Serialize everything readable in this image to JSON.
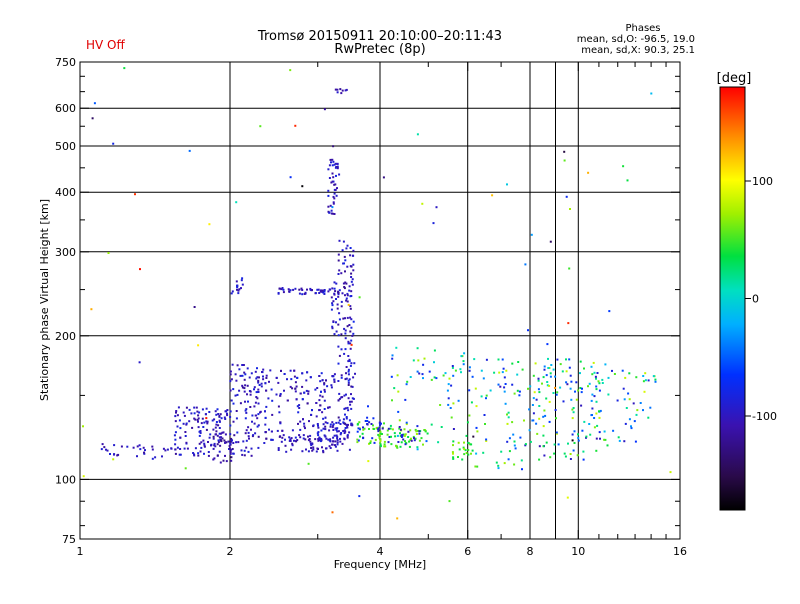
{
  "header": {
    "status": "HV Off",
    "status_color": "#e00000",
    "title_line1": "Tromsø 20150911 20:10:00–20:11:43",
    "title_line2": "RwPretec (8p)"
  },
  "phase_stats": {
    "heading": "Phases",
    "line_o": "mean, sd,O: -96.5, 19.0",
    "line_x": "mean, sd,X: 90.3, 25.1"
  },
  "colorbar": {
    "label": "[deg]",
    "min": -180,
    "max": 180,
    "ticks": [
      {
        "value": 100,
        "label": "100"
      },
      {
        "value": 0,
        "label": "0"
      },
      {
        "value": -100,
        "label": "-100"
      }
    ]
  },
  "chart_data": {
    "type": "scatter",
    "xlabel": "Frequency [MHz]",
    "ylabel": "Stationary phase Virtual Height [km]",
    "x_scale": "log",
    "y_scale": "log",
    "xlim": [
      1,
      16
    ],
    "ylim": [
      75,
      750
    ],
    "x_ticks": [
      {
        "value": 1,
        "label": "1"
      },
      {
        "value": 2,
        "label": "2"
      },
      {
        "value": 4,
        "label": "4"
      },
      {
        "value": 6,
        "label": "6"
      },
      {
        "value": 8,
        "label": "8"
      },
      {
        "value": 10,
        "label": "10"
      },
      {
        "value": 16,
        "label": "16"
      }
    ],
    "y_ticks": [
      {
        "value": 75,
        "label": "75"
      },
      {
        "value": 100,
        "label": "100"
      },
      {
        "value": 200,
        "label": "200"
      },
      {
        "value": 300,
        "label": "300"
      },
      {
        "value": 400,
        "label": "400"
      },
      {
        "value": 500,
        "label": "500"
      },
      {
        "value": 600,
        "label": "600"
      },
      {
        "value": 750,
        "label": "750"
      }
    ],
    "x_minor": [
      3,
      5,
      7,
      9,
      11,
      12,
      13,
      14,
      15
    ],
    "y_minor": [
      80,
      90,
      150,
      250,
      350,
      450,
      550,
      650,
      700
    ],
    "grid_x": [
      2,
      4,
      6,
      8,
      9,
      10
    ],
    "grid_y": [
      100,
      200,
      300,
      400,
      500,
      600
    ],
    "clusters": [
      {
        "f": [
          1.1,
          1.3
        ],
        "h": [
          112,
          120
        ],
        "phase": [
          -120,
          -85
        ],
        "n": 14
      },
      {
        "f": [
          1.3,
          1.55
        ],
        "h": [
          110,
          118
        ],
        "phase": [
          -120,
          -85
        ],
        "n": 18
      },
      {
        "f": [
          1.55,
          2.0
        ],
        "h": [
          112,
          142
        ],
        "phase": [
          -120,
          -80
        ],
        "n": 130
      },
      {
        "f": [
          1.85,
          2.05
        ],
        "h": [
          108,
          125
        ],
        "phase": [
          -130,
          -100
        ],
        "n": 40
      },
      {
        "f": [
          2.0,
          2.35
        ],
        "h": [
          112,
          175
        ],
        "phase": [
          -120,
          -80
        ],
        "n": 120
      },
      {
        "f": [
          2.35,
          3.3
        ],
        "h": [
          120,
          170
        ],
        "phase": [
          -120,
          -80
        ],
        "n": 170
      },
      {
        "f": [
          2.5,
          3.5
        ],
        "h": [
          114,
          124
        ],
        "phase": [
          -120,
          -90
        ],
        "n": 70
      },
      {
        "f": [
          3.0,
          3.55
        ],
        "h": [
          120,
          132
        ],
        "phase": [
          -110,
          -80
        ],
        "n": 60
      },
      {
        "f": [
          2.0,
          2.15
        ],
        "h": [
          245,
          265
        ],
        "phase": [
          -120,
          -80
        ],
        "n": 16
      },
      {
        "f": [
          2.5,
          3.25
        ],
        "h": [
          244,
          252
        ],
        "phase": [
          -120,
          -80
        ],
        "n": 45
      },
      {
        "f": [
          3.2,
          3.32
        ],
        "h": [
          200,
          260
        ],
        "phase": [
          -120,
          -80
        ],
        "n": 25
      },
      {
        "f": [
          3.15,
          3.3
        ],
        "h": [
          360,
          470
        ],
        "phase": [
          -120,
          -80
        ],
        "n": 45
      },
      {
        "f": [
          3.3,
          3.55
        ],
        "h": [
          130,
          320
        ],
        "phase": [
          -125,
          -80
        ],
        "n": 110
      },
      {
        "f": [
          3.35,
          3.6
        ],
        "h": [
          130,
          220
        ],
        "phase": [
          -115,
          -75
        ],
        "n": 30
      },
      {
        "f": [
          3.25,
          3.45
        ],
        "h": [
          640,
          660
        ],
        "phase": [
          -125,
          -85
        ],
        "n": 8
      },
      {
        "f": [
          3.6,
          4.1
        ],
        "h": [
          118,
          132
        ],
        "phase": [
          30,
          75
        ],
        "n": 30
      },
      {
        "f": [
          3.6,
          4.1
        ],
        "h": [
          118,
          135
        ],
        "phase": [
          -100,
          -60
        ],
        "n": 25
      },
      {
        "f": [
          4.0,
          5.0
        ],
        "h": [
          117,
          128
        ],
        "phase": [
          30,
          75
        ],
        "n": 50
      },
      {
        "f": [
          4.0,
          5.0
        ],
        "h": [
          118,
          130
        ],
        "phase": [
          -110,
          -80
        ],
        "n": 20
      },
      {
        "f": [
          4.2,
          6.0
        ],
        "h": [
          115,
          190
        ],
        "phase": [
          -100,
          80
        ],
        "n": 70
      },
      {
        "f": [
          5.6,
          6.2
        ],
        "h": [
          110,
          120
        ],
        "phase": [
          30,
          80
        ],
        "n": 20
      },
      {
        "f": [
          6.0,
          9.0
        ],
        "h": [
          105,
          180
        ],
        "phase": [
          -110,
          90
        ],
        "n": 110
      },
      {
        "f": [
          8.5,
          11.5
        ],
        "h": [
          110,
          180
        ],
        "phase": [
          -110,
          90
        ],
        "n": 110
      },
      {
        "f": [
          11.0,
          14.5
        ],
        "h": [
          120,
          170
        ],
        "phase": [
          -110,
          90
        ],
        "n": 50
      },
      {
        "f": [
          1.0,
          16.0
        ],
        "h": [
          75,
          750
        ],
        "phase": [
          -180,
          180
        ],
        "n": 70
      }
    ]
  }
}
